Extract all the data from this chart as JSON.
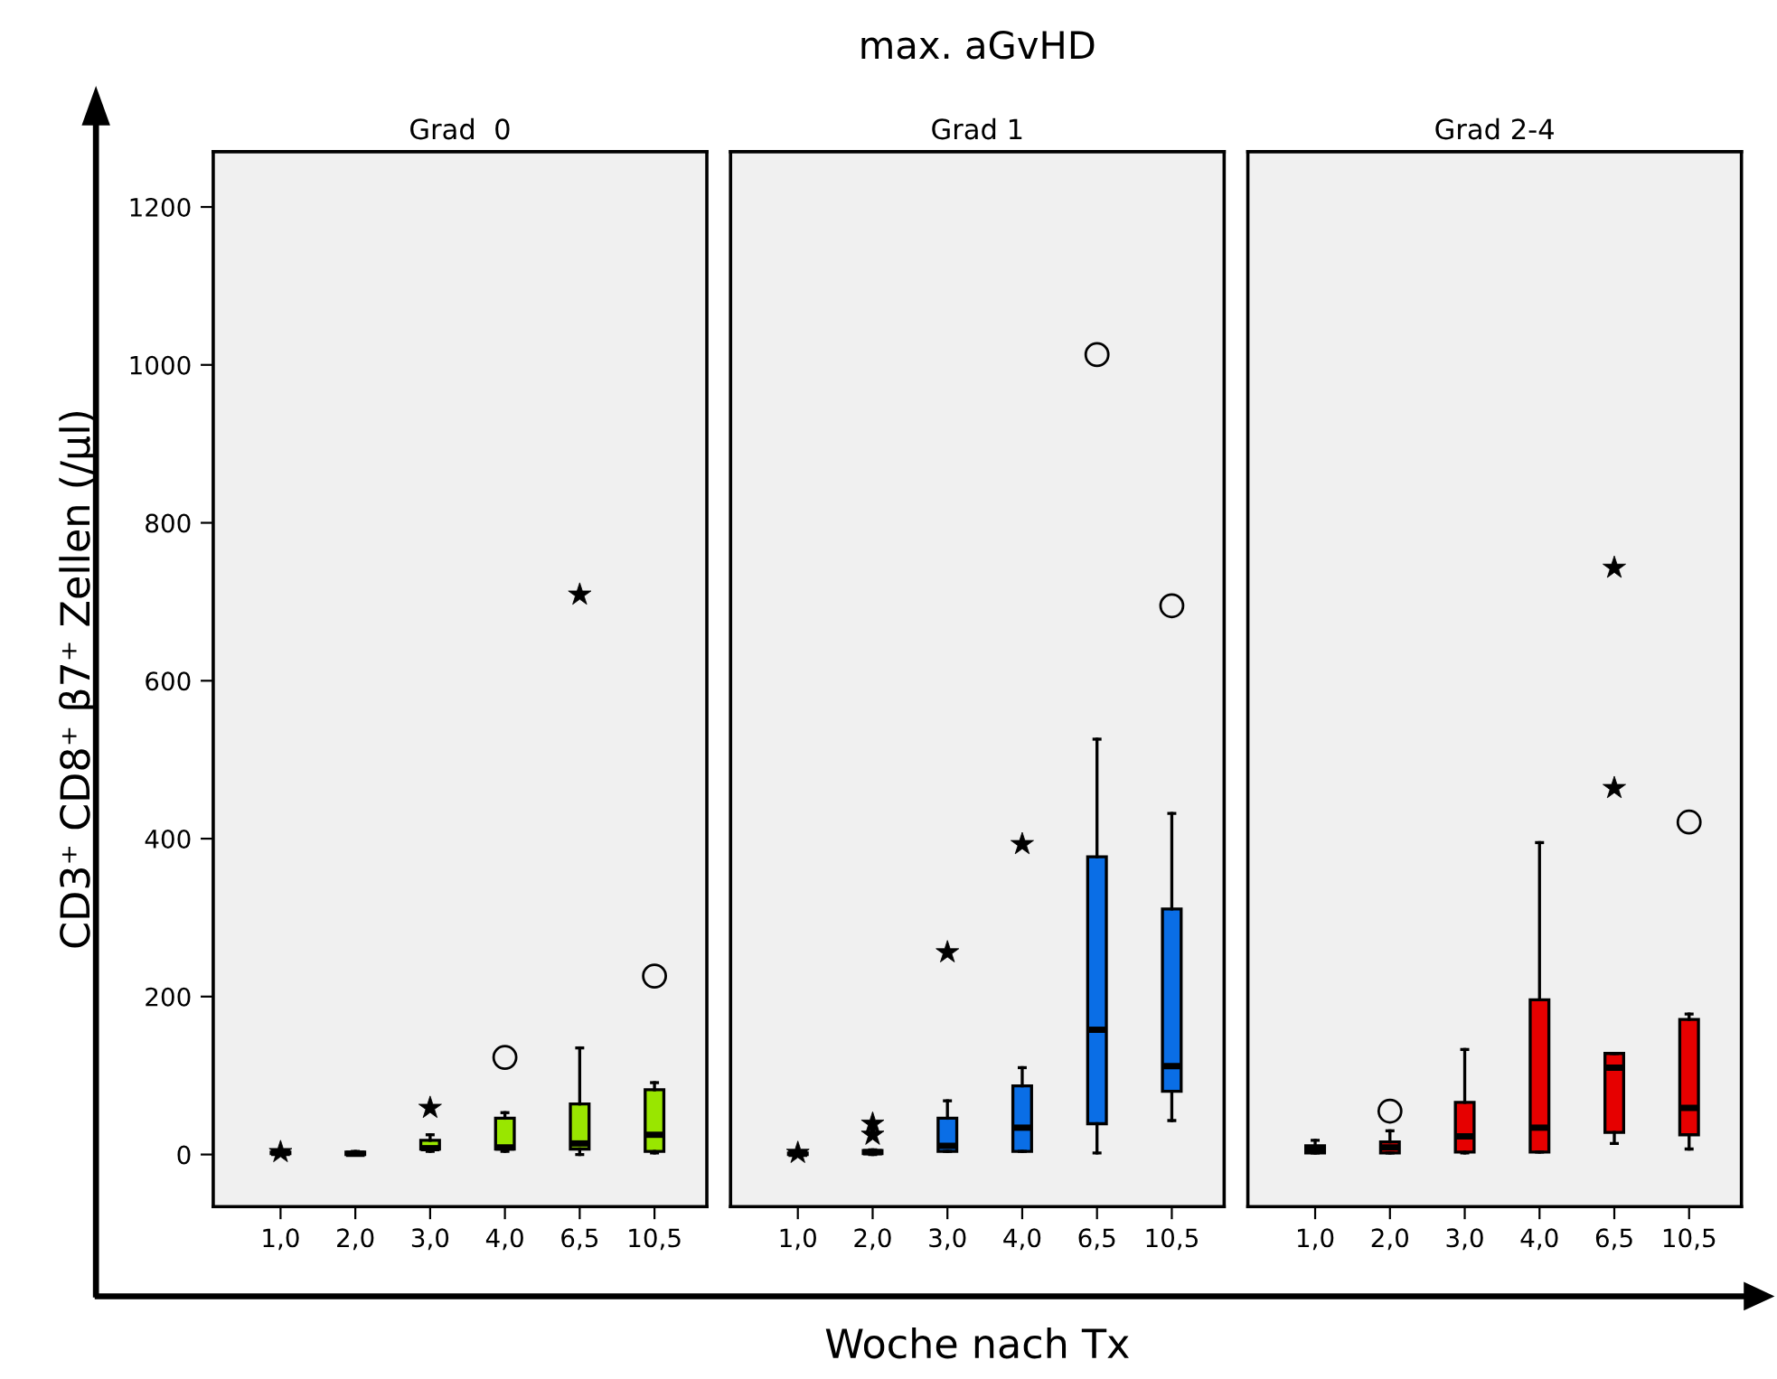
{
  "chart_data": [
    {
      "type": "box",
      "title": "Grad  0",
      "ylabel": "CD3⁺ CD8⁺ β7⁺ Zellen (/µl)",
      "annotations": [
        "max. aGvHD"
      ],
      "categories": [
        "1,0",
        "2,0",
        "3,0",
        "4,0",
        "6,5",
        "10,5"
      ],
      "ylim": [
        -66,
        1270
      ],
      "yticks": [
        0,
        200,
        400,
        600,
        800,
        1000,
        1200
      ],
      "grid": false,
      "series": [
        {
          "color": "#99e600",
          "boxes": [
            {
              "low": 0,
              "q1": 1,
              "median": 2,
              "q3": 3,
              "high": 4
            },
            {
              "low": 0,
              "q1": 0,
              "median": 1,
              "q3": 3,
              "high": 4
            },
            {
              "low": 4,
              "q1": 7,
              "median": 8,
              "q3": 18,
              "high": 25
            },
            {
              "low": 4,
              "q1": 7,
              "median": 9,
              "q3": 46,
              "high": 53,
              "outliers": [
                123
              ]
            },
            {
              "low": 0,
              "q1": 7,
              "median": 14,
              "q3": 64,
              "high": 135
            },
            {
              "low": 2,
              "q1": 4,
              "median": 25,
              "q3": 82,
              "high": 91,
              "outliers": [
                226
              ]
            }
          ]
        },
        {
          "type": "scatter",
          "marker": "star",
          "x": [
            "1,0",
            "3,0",
            "6,5"
          ],
          "values": [
            3,
            59,
            709
          ]
        }
      ]
    },
    {
      "type": "box",
      "title": "Grad 1",
      "xlabel": "Woche nach Tx",
      "categories": [
        "1,0",
        "2,0",
        "3,0",
        "4,0",
        "6,5",
        "10,5"
      ],
      "ylim": [
        -66,
        1270
      ],
      "tick_labels": "x",
      "grid": false,
      "series": [
        {
          "color": "#0a6ee6",
          "boxes": [
            {
              "low": 0,
              "q1": 0,
              "median": 1,
              "q3": 2,
              "high": 3
            },
            {
              "low": 0,
              "q1": 1,
              "median": 3,
              "q3": 5,
              "high": 6
            },
            {
              "low": 4,
              "q1": 4,
              "median": 11,
              "q3": 46,
              "high": 68
            },
            {
              "low": 4,
              "q1": 4,
              "median": 34,
              "q3": 87,
              "high": 110
            },
            {
              "low": 2,
              "q1": 39,
              "median": 158,
              "q3": 377,
              "high": 526,
              "outliers": [
                1013
              ]
            },
            {
              "low": 43,
              "q1": 80,
              "median": 112,
              "q3": 311,
              "high": 432,
              "outliers": [
                695
              ]
            }
          ]
        },
        {
          "type": "scatter",
          "marker": "star",
          "x": [
            "1,0",
            "2,0",
            "2,0",
            "3,0",
            "4,0"
          ],
          "values": [
            2,
            25,
            39,
            256,
            393
          ]
        }
      ]
    },
    {
      "type": "box",
      "title": "Grad 2-4",
      "categories": [
        "1,0",
        "2,0",
        "3,0",
        "4,0",
        "6,5",
        "10,5"
      ],
      "ylim": [
        -66,
        1270
      ],
      "tick_labels": "x",
      "grid": false,
      "series": [
        {
          "color": "#e60000",
          "boxes": [
            {
              "low": 2,
              "q1": 2,
              "median": 7,
              "q3": 11,
              "high": 18
            },
            {
              "low": 2,
              "q1": 2,
              "median": 9,
              "q3": 16,
              "high": 30,
              "outliers": [
                55
              ]
            },
            {
              "low": 2,
              "q1": 3,
              "median": 23,
              "q3": 66,
              "high": 133
            },
            {
              "low": 3,
              "q1": 3,
              "median": 34,
              "q3": 196,
              "high": 395
            },
            {
              "low": 14,
              "q1": 28,
              "median": 110,
              "q3": 128,
              "high": 128
            },
            {
              "low": 7,
              "q1": 25,
              "median": 59,
              "q3": 171,
              "high": 178,
              "outliers": [
                421
              ]
            }
          ]
        },
        {
          "type": "scatter",
          "marker": "star",
          "x": [
            "6,5",
            "6,5"
          ],
          "values": [
            464,
            743
          ]
        }
      ]
    }
  ]
}
